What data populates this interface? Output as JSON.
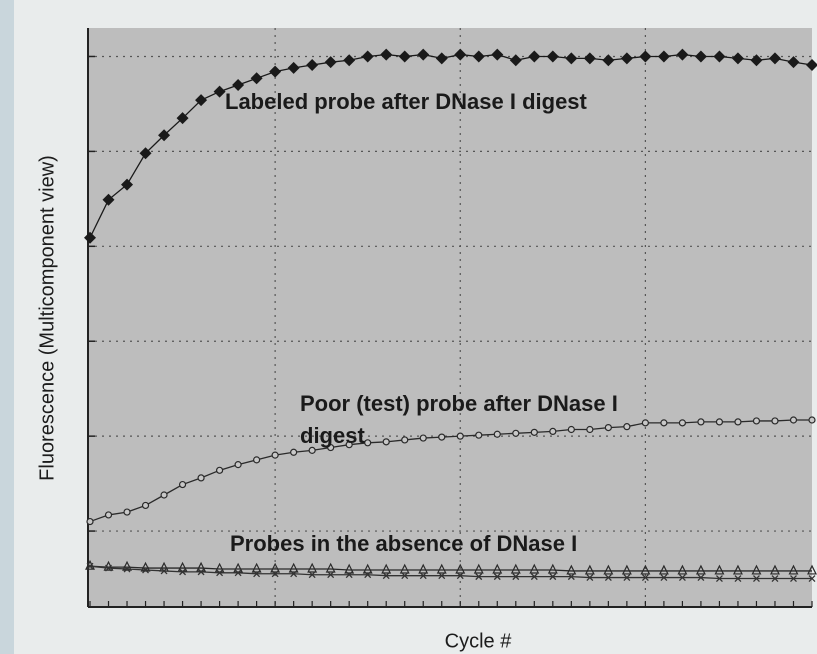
{
  "chart_data": {
    "type": "line",
    "ylabel": "Fluorescence (Multicomponent view)",
    "xlabel": "Cycle #",
    "annotations": [
      "Labeled probe after DNase I digest",
      "Poor (test) probe after DNase I",
      "digest",
      "Probes in the absence of DNase I"
    ],
    "x": [
      1,
      2,
      3,
      4,
      5,
      6,
      7,
      8,
      9,
      10,
      11,
      12,
      13,
      14,
      15,
      16,
      17,
      18,
      19,
      20,
      21,
      22,
      23,
      24,
      25,
      26,
      27,
      28,
      29,
      30,
      31,
      32,
      33,
      34,
      35,
      36,
      37,
      38,
      39,
      40
    ],
    "xlim": [
      1,
      40
    ],
    "xticks": [
      11,
      21,
      31
    ],
    "ylim": [
      0,
      6.1
    ],
    "yticks": [
      0.8,
      1.8,
      2.8,
      3.8,
      4.8,
      5.8
    ],
    "grid": true,
    "series": [
      {
        "marker": "diamond",
        "color": "#1a1a1a",
        "values": [
          3.89,
          4.29,
          4.45,
          4.78,
          4.97,
          5.15,
          5.34,
          5.43,
          5.5,
          5.57,
          5.64,
          5.68,
          5.71,
          5.74,
          5.76,
          5.8,
          5.82,
          5.8,
          5.82,
          5.78,
          5.82,
          5.8,
          5.82,
          5.76,
          5.8,
          5.8,
          5.78,
          5.78,
          5.76,
          5.78,
          5.8,
          5.8,
          5.82,
          5.8,
          5.8,
          5.78,
          5.76,
          5.78,
          5.74,
          5.71
        ]
      },
      {
        "marker": "circle",
        "color": "#2a2a2a",
        "values": [
          0.9,
          0.97,
          1.0,
          1.07,
          1.18,
          1.29,
          1.36,
          1.44,
          1.5,
          1.55,
          1.6,
          1.63,
          1.65,
          1.68,
          1.71,
          1.73,
          1.74,
          1.76,
          1.78,
          1.79,
          1.8,
          1.81,
          1.82,
          1.83,
          1.84,
          1.85,
          1.87,
          1.87,
          1.89,
          1.9,
          1.94,
          1.94,
          1.94,
          1.95,
          1.95,
          1.95,
          1.96,
          1.96,
          1.97,
          1.97
        ]
      },
      {
        "marker": "triangle",
        "color": "#2a2a2a",
        "values": [
          0.43,
          0.42,
          0.42,
          0.41,
          0.41,
          0.41,
          0.41,
          0.4,
          0.4,
          0.4,
          0.4,
          0.4,
          0.4,
          0.4,
          0.39,
          0.39,
          0.39,
          0.39,
          0.39,
          0.39,
          0.39,
          0.39,
          0.39,
          0.39,
          0.39,
          0.39,
          0.38,
          0.38,
          0.38,
          0.38,
          0.38,
          0.38,
          0.38,
          0.38,
          0.38,
          0.38,
          0.38,
          0.38,
          0.38,
          0.38
        ]
      },
      {
        "marker": "cross",
        "color": "#333333",
        "values": [
          0.43,
          0.41,
          0.4,
          0.39,
          0.38,
          0.37,
          0.37,
          0.36,
          0.36,
          0.35,
          0.35,
          0.35,
          0.34,
          0.34,
          0.34,
          0.34,
          0.33,
          0.33,
          0.33,
          0.33,
          0.33,
          0.32,
          0.32,
          0.32,
          0.32,
          0.32,
          0.32,
          0.31,
          0.31,
          0.31,
          0.31,
          0.31,
          0.31,
          0.31,
          0.3,
          0.3,
          0.3,
          0.3,
          0.3,
          0.3
        ]
      }
    ]
  }
}
